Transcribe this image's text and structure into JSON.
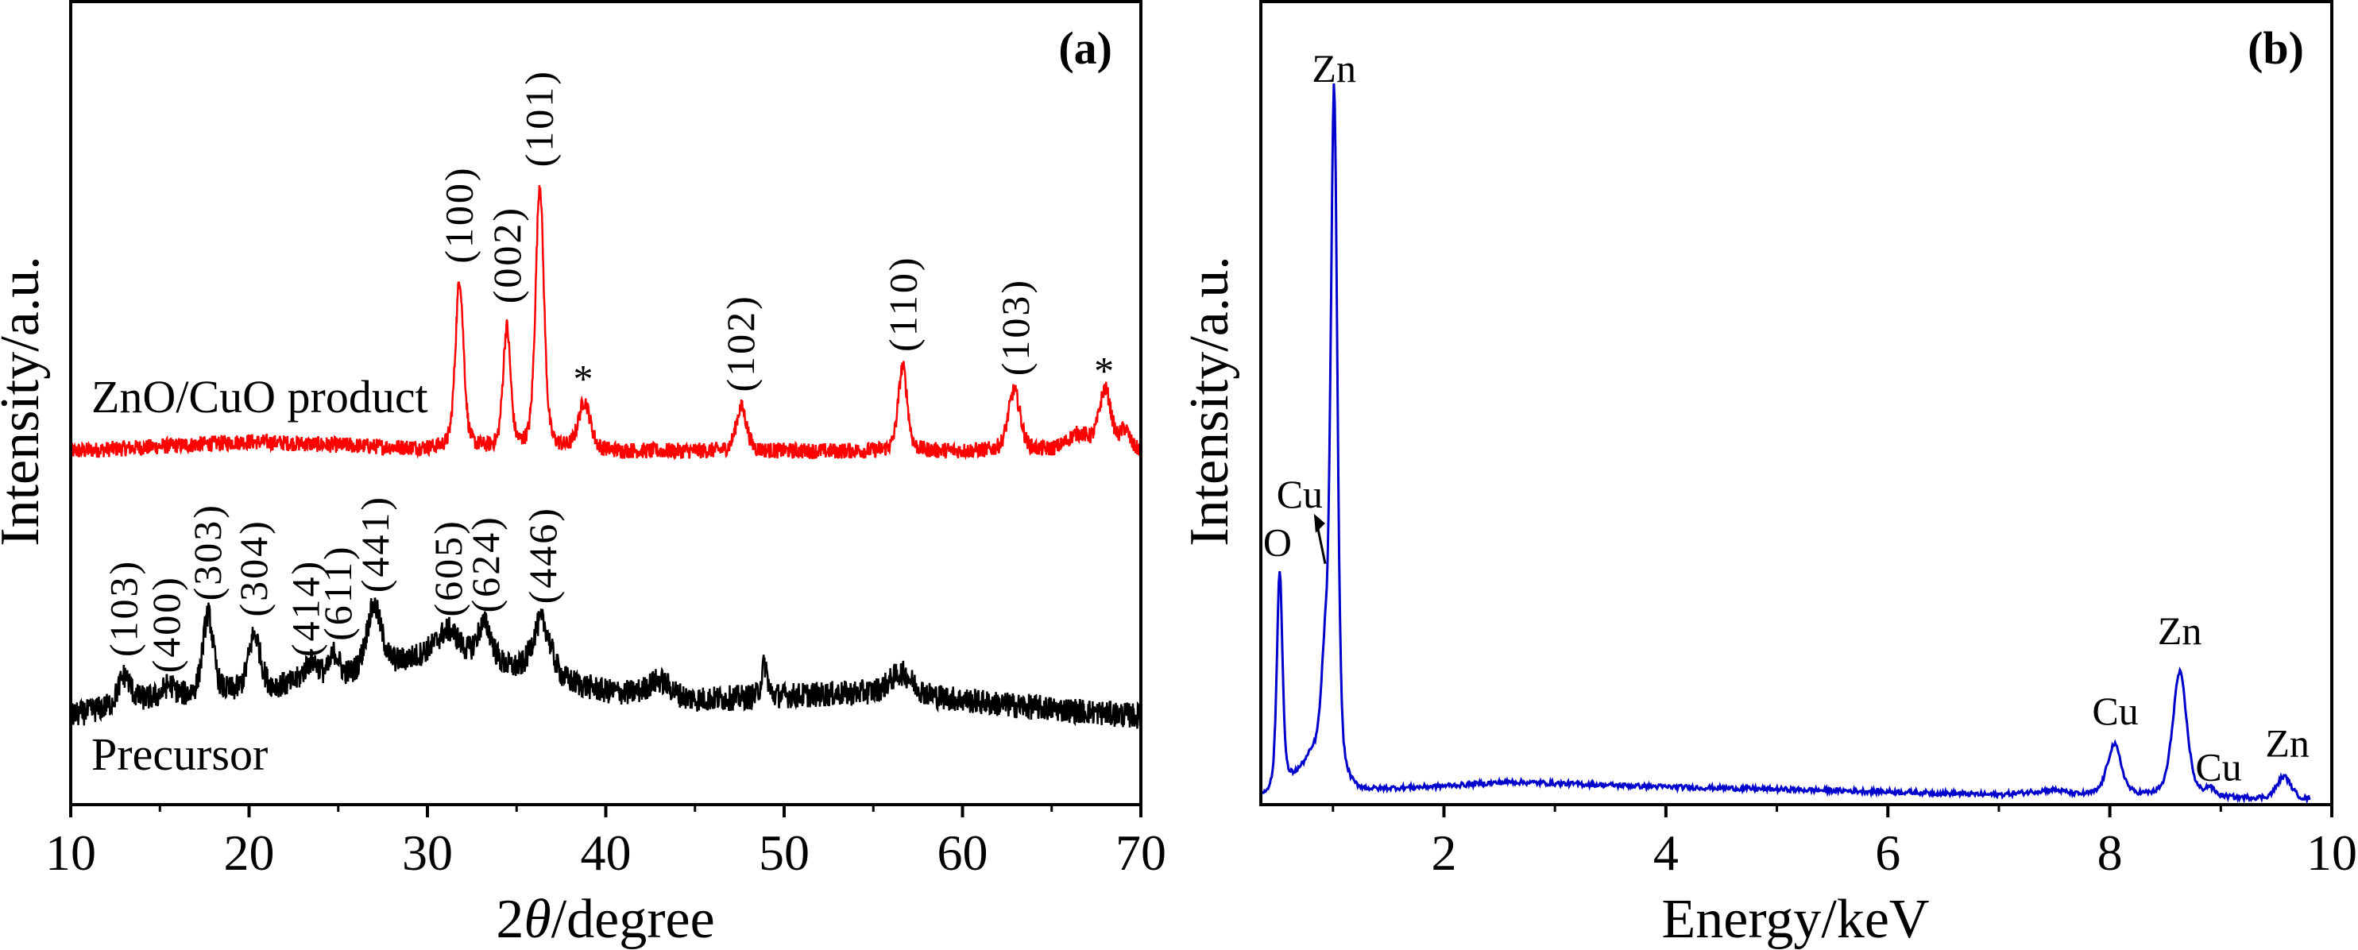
{
  "chart_data": [
    {
      "type": "line",
      "panel_label": "(a)",
      "xlabel_prefix": "2",
      "xlabel_symbol": "θ",
      "xlabel_suffix": "/degree",
      "ylabel": "Intensity/a.u.",
      "xlim": [
        10,
        70
      ],
      "ylim": [
        0,
        100
      ],
      "xticks": [
        "10",
        "20",
        "30",
        "40",
        "50",
        "60",
        "70"
      ],
      "xtick_values": [
        10,
        20,
        30,
        40,
        50,
        60,
        70
      ],
      "minor_xticks": [
        15,
        25,
        35,
        45,
        55,
        65
      ],
      "yticks_shown": false,
      "grid": false,
      "series": [
        {
          "name": "ZnO/CuO product",
          "color": "#ff0000",
          "noise": 1.0,
          "baseline": [
            [
              10,
              44
            ],
            [
              20,
              45.2
            ],
            [
              30,
              44.3
            ],
            [
              40,
              44
            ],
            [
              70,
              44
            ]
          ],
          "peaks": [
            [
              31.8,
              21,
              0.55
            ],
            [
              34.45,
              15,
              0.5
            ],
            [
              36.3,
              33,
              0.55
            ],
            [
              38.8,
              6,
              0.8
            ],
            [
              47.6,
              5.5,
              0.7
            ],
            [
              56.65,
              10.5,
              0.6
            ],
            [
              62.9,
              7.5,
              0.8
            ],
            [
              68.0,
              7.5,
              0.8
            ],
            [
              69.1,
              2.5,
              0.6
            ],
            [
              66.5,
              2,
              1.5
            ]
          ],
          "annotations": [
            {
              "text": "(100)",
              "x": 31.8,
              "y": 66
            },
            {
              "text": "(002)",
              "x": 34.5,
              "y": 61
            },
            {
              "text": "(101)",
              "x": 36.3,
              "y": 78
            },
            {
              "text": "*",
              "x": 38.8,
              "y": 51
            },
            {
              "text": "(102)",
              "x": 47.6,
              "y": 50
            },
            {
              "text": "(110)",
              "x": 56.7,
              "y": 55
            },
            {
              "text": "(103)",
              "x": 63.0,
              "y": 52
            },
            {
              "text": "*",
              "x": 68.0,
              "y": 52
            }
          ]
        },
        {
          "name": "Precursor",
          "color": "#000000",
          "noise": 1.6,
          "baseline": [
            [
              10,
              11
            ],
            [
              14,
              13
            ],
            [
              20,
              14
            ],
            [
              26,
              16
            ],
            [
              30,
              18.5
            ],
            [
              34,
              17
            ],
            [
              40,
              14
            ],
            [
              45,
              13
            ],
            [
              50,
              13.5
            ],
            [
              56,
              14
            ],
            [
              62,
              12.5
            ],
            [
              70,
              11
            ]
          ],
          "peaks": [
            [
              13.0,
              3.5,
              0.8
            ],
            [
              15.5,
              1.5,
              0.8
            ],
            [
              17.7,
              10,
              0.7
            ],
            [
              20.3,
              7,
              0.8
            ],
            [
              23.5,
              2.5,
              1
            ],
            [
              24.8,
              3,
              0.6
            ],
            [
              27.0,
              8,
              1
            ],
            [
              31.2,
              3.5,
              1.5
            ],
            [
              33.2,
              5,
              1
            ],
            [
              36.4,
              7,
              1.2
            ],
            [
              43,
              2,
              1.5
            ],
            [
              48.9,
              4,
              0.4
            ],
            [
              56.6,
              2.5,
              1.5
            ]
          ],
          "annotations": [
            {
              "text": "(103)",
              "x": 13.0,
              "y": 17
            },
            {
              "text": "(400)",
              "x": 15.4,
              "y": 15
            },
            {
              "text": "(303)",
              "x": 17.7,
              "y": 24
            },
            {
              "text": "(304)",
              "x": 20.3,
              "y": 22
            },
            {
              "text": "(414)",
              "x": 23.2,
              "y": 17
            },
            {
              "text": "(611)",
              "x": 25.0,
              "y": 19
            },
            {
              "text": "(441)",
              "x": 27.1,
              "y": 25
            },
            {
              "text": "(605)",
              "x": 31.2,
              "y": 22
            },
            {
              "text": "(624)",
              "x": 33.3,
              "y": 22.5
            },
            {
              "text": "(446)",
              "x": 36.5,
              "y": 23.6
            }
          ]
        }
      ]
    },
    {
      "type": "line",
      "panel_label": "(b)",
      "xlabel": "Energy/keV",
      "ylabel": "Intensity/a.u.",
      "xlim": [
        0.35,
        10
      ],
      "ylim": [
        0,
        100
      ],
      "xticks": [
        "2",
        "4",
        "6",
        "8",
        "10"
      ],
      "xtick_values": [
        2,
        4,
        6,
        8,
        10
      ],
      "minor_xticks": [
        1,
        3,
        5,
        7,
        9
      ],
      "yticks_shown": false,
      "grid": false,
      "series": [
        {
          "color": "#0000cc",
          "noise": 0.3,
          "x_range": [
            0.36,
            9.8
          ],
          "baseline": [
            [
              0.36,
              0.8
            ],
            [
              0.6,
              2
            ],
            [
              1.2,
              1.2
            ],
            [
              1.5,
              1.8
            ],
            [
              2.6,
              2.8
            ],
            [
              4,
              2.2
            ],
            [
              6,
              1.6
            ],
            [
              7,
              1.2
            ],
            [
              7.5,
              1.8
            ],
            [
              7.7,
              1.2
            ],
            [
              9,
              0.8
            ],
            [
              9.8,
              0.6
            ]
          ],
          "peaks": [
            [
              0.52,
              27,
              0.06
            ],
            [
              0.85,
              4,
              0.3
            ],
            [
              0.93,
              12,
              0.08
            ],
            [
              1.01,
              85,
              0.07
            ],
            [
              8.04,
              6.3,
              0.15
            ],
            [
              8.63,
              15.5,
              0.15
            ],
            [
              8.9,
              1,
              0.1
            ],
            [
              9.57,
              2.8,
              0.15
            ]
          ],
          "annotations": [
            {
              "text": "Zn",
              "x": 1.01,
              "y": 90
            },
            {
              "text": "O",
              "x": 0.5,
              "y": 31
            },
            {
              "text": "Cu",
              "x": 0.7,
              "y": 37,
              "arrow_to": [
                0.93,
                30
              ]
            },
            {
              "text": "Cu",
              "x": 8.05,
              "y": 10
            },
            {
              "text": "Zn",
              "x": 8.63,
              "y": 20
            },
            {
              "text": "Cu",
              "x": 8.98,
              "y": 3
            },
            {
              "text": "Zn",
              "x": 9.6,
              "y": 6
            }
          ]
        }
      ]
    }
  ]
}
